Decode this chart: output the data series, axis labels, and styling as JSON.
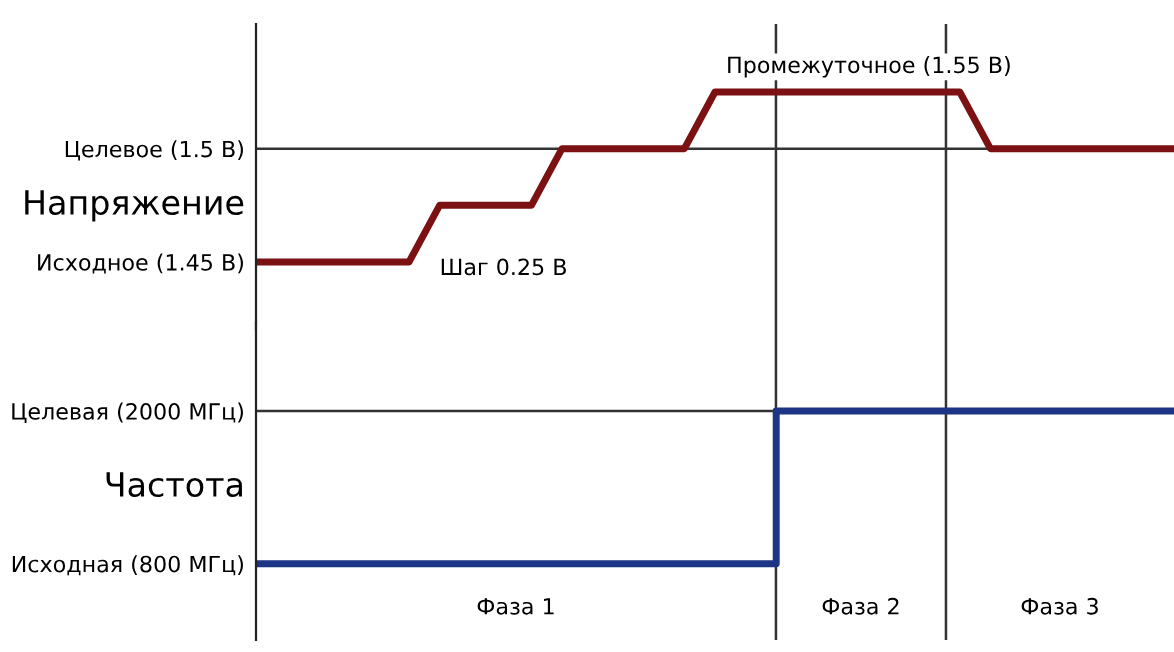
{
  "chart_data": [
    {
      "type": "line",
      "categories": [
        null,
        null,
        null,
        null,
        null,
        null,
        null,
        null,
        null,
        null,
        null,
        null,
        null,
        null,
        null,
        null,
        null,
        null,
        null,
        null,
        null,
        null,
        null,
        null,
        null,
        null,
        null,
        null,
        null,
        null,
        null
      ],
      "series": [
        {
          "color": "#7b1113",
          "values": [
            1.45,
            1.45,
            1.45,
            1.45,
            1.45,
            1.45,
            1.475,
            1.475,
            1.475,
            1.475,
            1.5,
            1.5,
            1.5,
            1.5,
            1.5,
            1.525,
            1.525,
            1.525,
            1.525,
            1.525,
            1.525,
            1.525,
            1.525,
            1.525,
            1.5,
            1.5,
            1.5,
            1.5,
            1.5,
            1.5,
            1.5
          ]
        }
      ],
      "ylabel": "Напряжение",
      "ylim": [
        1.42,
        1.555
      ],
      "yticks": [
        {
          "value": 1.45,
          "label": "Исходное (1.45 В)"
        },
        {
          "value": 1.5,
          "label": "Целевое (1.5 В)"
        }
      ],
      "tick_labels": "y",
      "ref_lines": [
        {
          "axis": "y",
          "value": 1.5
        }
      ],
      "annotations": [
        "Шаг 0.25 В",
        "Промежуточное (1.55 В)"
      ],
      "grid": false,
      "legend": false,
      "marker": "none",
      "line_style": "solid"
    },
    {
      "type": "step",
      "categories": [
        null,
        null,
        null,
        null,
        null,
        null,
        null,
        null,
        null,
        null,
        null,
        null,
        null,
        null,
        null,
        null,
        null,
        null,
        null,
        null,
        null,
        null,
        null,
        null,
        null,
        null,
        null,
        null,
        null,
        null,
        null
      ],
      "series": [
        {
          "color": "#1c3585",
          "values": [
            800,
            800,
            800,
            800,
            800,
            800,
            800,
            800,
            800,
            800,
            800,
            800,
            800,
            800,
            800,
            800,
            800,
            2000,
            2000,
            2000,
            2000,
            2000,
            2000,
            2000,
            2000,
            2000,
            2000,
            2000,
            2000,
            2000,
            2000
          ]
        }
      ],
      "ylabel": "Частота",
      "ylim": [
        200,
        2700
      ],
      "yticks": [
        {
          "value": 800,
          "label": "Исходная (800 МГц)"
        },
        {
          "value": 2000,
          "label": "Целевая (2000 МГц)"
        }
      ],
      "tick_labels": "y",
      "ref_lines": [
        {
          "axis": "y",
          "value": 2000
        }
      ],
      "annotations": [
        "Фаза 1",
        "Фаза 2",
        "Фаза 3"
      ],
      "grid": false,
      "legend": false,
      "marker": "none",
      "line_style": "solid"
    }
  ]
}
